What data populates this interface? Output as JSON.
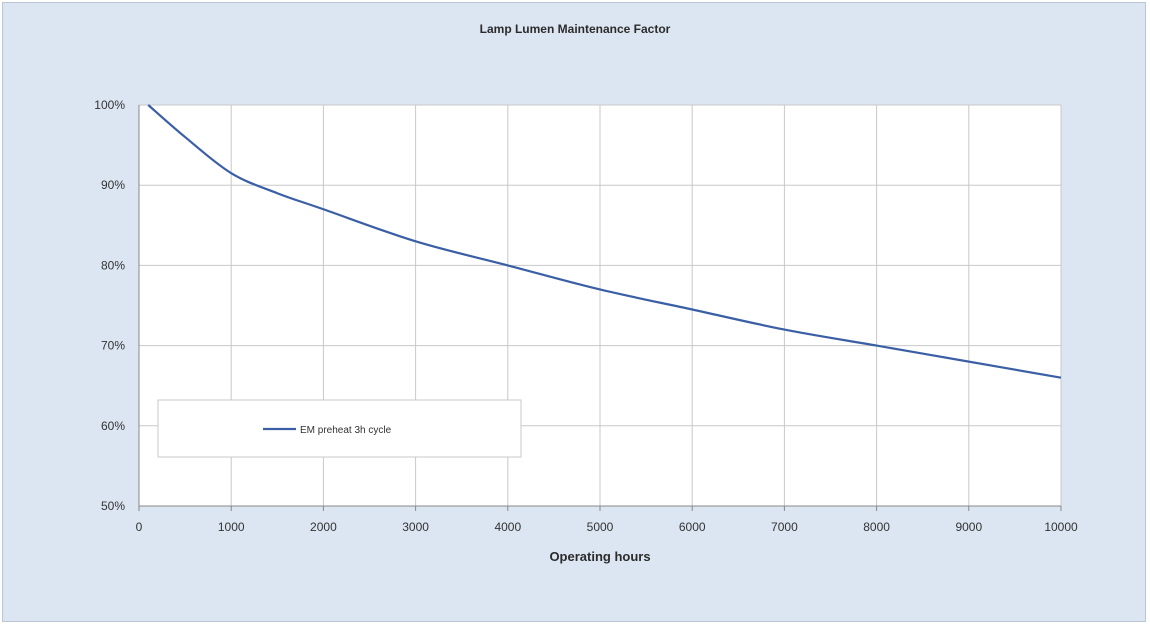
{
  "chart_data": {
    "type": "line",
    "title": "Lamp Lumen Maintenance Factor",
    "xlabel": "Operating hours",
    "ylabel": "",
    "xlim": [
      0,
      10000
    ],
    "ylim": [
      0.5,
      1.0
    ],
    "x_ticks": [
      "0",
      "1000",
      "2000",
      "3000",
      "4000",
      "5000",
      "6000",
      "7000",
      "8000",
      "9000",
      "10000"
    ],
    "y_ticks": [
      "50%",
      "60%",
      "70%",
      "80%",
      "90%",
      "100%"
    ],
    "grid": true,
    "legend_position": "lower-left",
    "colors": {
      "line": "#3a5fa5",
      "frame": "#dce6f2",
      "grid": "#c8c8c8"
    },
    "series": [
      {
        "name": "EM preheat 3h cycle",
        "x": [
          100,
          500,
          1000,
          1500,
          2000,
          3000,
          4000,
          5000,
          6000,
          7000,
          8000,
          9000,
          10000
        ],
        "values": [
          1.0,
          0.96,
          0.915,
          0.89,
          0.87,
          0.83,
          0.8,
          0.77,
          0.745,
          0.72,
          0.7,
          0.68,
          0.66
        ]
      }
    ]
  }
}
